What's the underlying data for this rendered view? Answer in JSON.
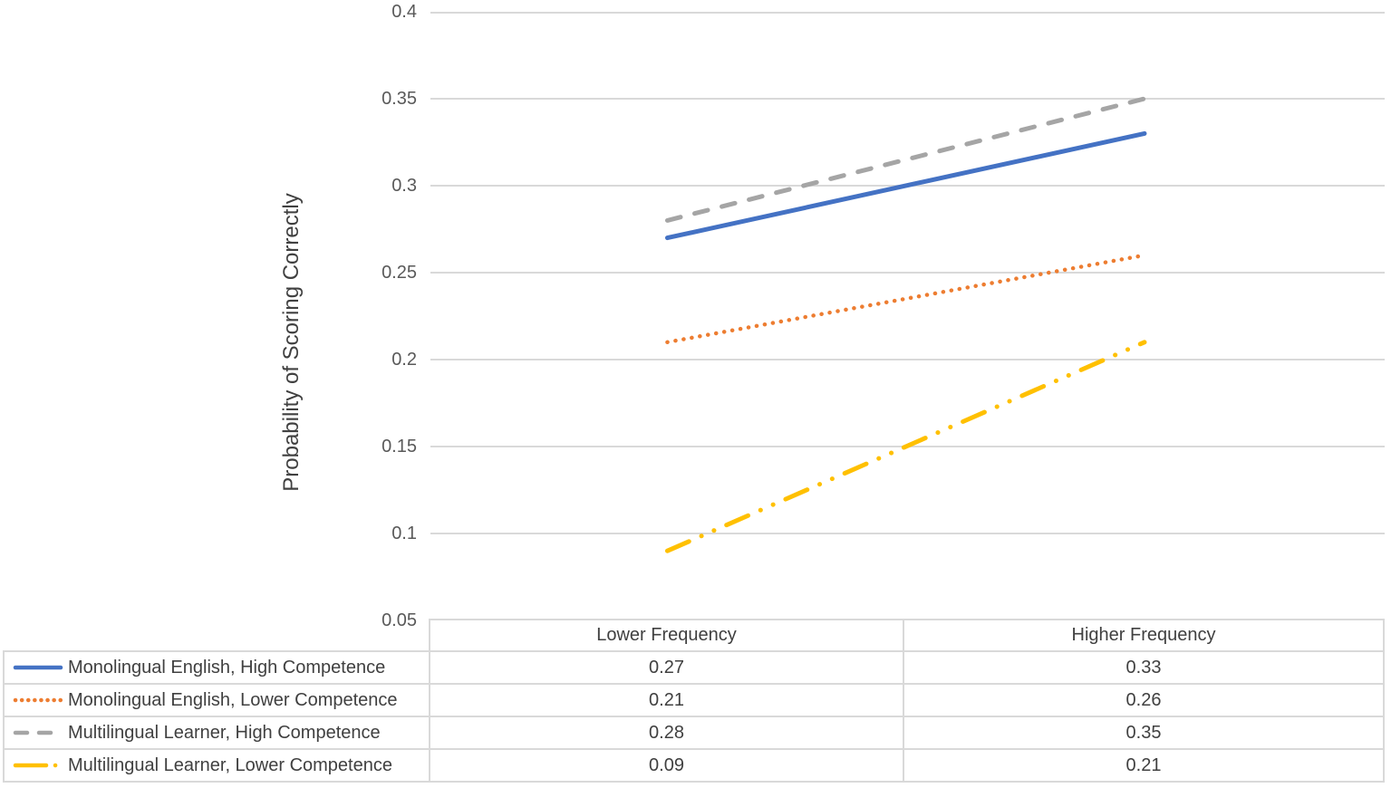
{
  "chart_data": {
    "type": "line",
    "ylabel": "Probability of Scoring Correctly",
    "ylim": [
      0.05,
      0.4
    ],
    "ytick_step": 0.05,
    "yticks": [
      "0.4",
      "0.35",
      "0.3",
      "0.25",
      "0.2",
      "0.15",
      "0.1",
      "0.05"
    ],
    "grid": true,
    "grid_color": "#D9D9D9",
    "legend_position": "data-table-left",
    "categories": [
      "Lower Frequency",
      "Higher Frequency"
    ],
    "series": [
      {
        "name": "Monolingual English, High Competence",
        "values": [
          0.27,
          0.33
        ],
        "color": "#4472C4",
        "style": "solid"
      },
      {
        "name": "Monolingual English, Lower Competence",
        "values": [
          0.21,
          0.26
        ],
        "color": "#ED7D31",
        "style": "dotted"
      },
      {
        "name": "Multilingual Learner, High Competence",
        "values": [
          0.28,
          0.35
        ],
        "color": "#A5A5A5",
        "style": "dashed"
      },
      {
        "name": "Multilingual Learner, Lower Competence",
        "values": [
          0.09,
          0.21
        ],
        "color": "#FFC000",
        "style": "long-dash-dot-dot"
      }
    ]
  },
  "colors": {
    "axis_text": "#595959",
    "table_text": "#404040",
    "table_border": "#D9D9D9"
  }
}
